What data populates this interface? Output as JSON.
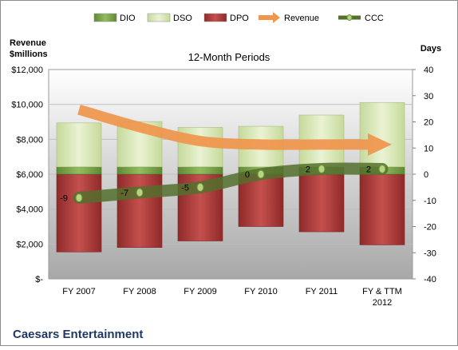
{
  "chart_data": {
    "type": "bar",
    "title": "12-Month Periods",
    "company": "Caesars Entertainment",
    "ylabel_left": "Revenue $millions",
    "ylabel_right": "Days",
    "categories": [
      "FY 2007",
      "FY 2008",
      "FY 2009",
      "FY 2010",
      "FY 2011",
      "FY & TTM 2012"
    ],
    "left_axis": {
      "ylim": [
        0,
        12000
      ],
      "ticks": [
        0,
        2000,
        4000,
        6000,
        8000,
        10000,
        12000
      ],
      "tick_labels": [
        "$-",
        "$2,000",
        "$4,000",
        "$6,000",
        "$8,000",
        "$10,000",
        "$12,000"
      ]
    },
    "right_axis": {
      "ylim": [
        -40,
        40
      ],
      "ticks": [
        -40,
        -30,
        -20,
        -10,
        0,
        10,
        20,
        30,
        40
      ]
    },
    "legend_position": "top",
    "legend": [
      "DIO",
      "DSO",
      "DPO",
      "Revenue",
      "CCC"
    ],
    "series": [
      {
        "name": "DIO",
        "axis": "right",
        "kind": "stacked-bar-positive",
        "values": [
          2.8,
          2.8,
          2.8,
          2.8,
          2.8,
          2.8
        ]
      },
      {
        "name": "DSO",
        "axis": "right",
        "kind": "stacked-bar-positive",
        "values": [
          16.8,
          17.3,
          15.1,
          15.5,
          19.8,
          24.6
        ]
      },
      {
        "name": "DPO",
        "axis": "right",
        "kind": "bar-negative",
        "values": [
          -29.7,
          -28.0,
          -25.5,
          -20.0,
          -22.0,
          -27.0
        ]
      },
      {
        "name": "Revenue",
        "axis": "left",
        "kind": "line-arrow",
        "values": [
          9700,
          8700,
          7900,
          7700,
          7700,
          7700
        ]
      },
      {
        "name": "CCC",
        "axis": "right",
        "kind": "line",
        "values": [
          -9,
          -7,
          -5,
          0,
          2,
          2
        ]
      }
    ],
    "colors": {
      "DIO": "#77a14a",
      "DSO": "#d6e6b4",
      "DPO": "#a93a39",
      "Revenue": "#f0954c",
      "CCC": "#53702d",
      "plot_bg_top": "#ffffff",
      "plot_bg_bottom": "#a9a9a9"
    }
  }
}
